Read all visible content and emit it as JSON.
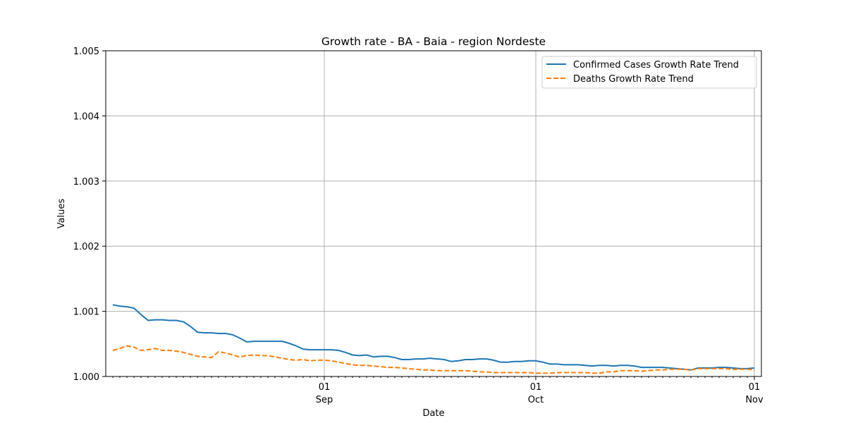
{
  "chart_data": {
    "type": "line",
    "title": "Growth rate - BA - Baia - region Nordeste",
    "xlabel": "Date",
    "ylabel": "Values",
    "ylim": [
      1.0,
      1.005
    ],
    "yticks": [
      "1.000",
      "1.001",
      "1.002",
      "1.003",
      "1.004",
      "1.005"
    ],
    "xlim": [
      "2020-08-02",
      "2020-11-01"
    ],
    "xticks": [
      {
        "date": "2020-09-01",
        "day": "01",
        "month": "Sep"
      },
      {
        "date": "2020-10-01",
        "day": "01",
        "month": "Oct"
      },
      {
        "date": "2020-11-01",
        "day": "01",
        "month": "Nov"
      }
    ],
    "grid": true,
    "legend_position": "top-right",
    "series": [
      {
        "name": "Confirmed Cases Growth Rate Trend",
        "color": "#1f77b4",
        "style": "solid",
        "x": [
          "2020-08-02",
          "2020-08-03",
          "2020-08-04",
          "2020-08-05",
          "2020-08-06",
          "2020-08-07",
          "2020-08-08",
          "2020-08-09",
          "2020-08-10",
          "2020-08-11",
          "2020-08-12",
          "2020-08-13",
          "2020-08-14",
          "2020-08-15",
          "2020-08-16",
          "2020-08-17",
          "2020-08-18",
          "2020-08-19",
          "2020-08-20",
          "2020-08-21",
          "2020-08-22",
          "2020-08-23",
          "2020-08-24",
          "2020-08-25",
          "2020-08-26",
          "2020-08-27",
          "2020-08-28",
          "2020-08-29",
          "2020-08-30",
          "2020-08-31",
          "2020-09-01",
          "2020-09-02",
          "2020-09-03",
          "2020-09-04",
          "2020-09-05",
          "2020-09-06",
          "2020-09-07",
          "2020-09-08",
          "2020-09-09",
          "2020-09-10",
          "2020-09-11",
          "2020-09-12",
          "2020-09-13",
          "2020-09-14",
          "2020-09-15",
          "2020-09-16",
          "2020-09-17",
          "2020-09-18",
          "2020-09-19",
          "2020-09-20",
          "2020-09-21",
          "2020-09-22",
          "2020-09-23",
          "2020-09-24",
          "2020-09-25",
          "2020-09-26",
          "2020-09-27",
          "2020-09-28",
          "2020-09-29",
          "2020-09-30",
          "2020-10-01",
          "2020-10-02",
          "2020-10-03",
          "2020-10-04",
          "2020-10-05",
          "2020-10-06",
          "2020-10-07",
          "2020-10-08",
          "2020-10-09",
          "2020-10-10",
          "2020-10-11",
          "2020-10-12",
          "2020-10-13",
          "2020-10-14",
          "2020-10-15",
          "2020-10-16",
          "2020-10-17",
          "2020-10-18",
          "2020-10-19",
          "2020-10-20",
          "2020-10-21",
          "2020-10-22",
          "2020-10-23",
          "2020-10-24",
          "2020-10-25",
          "2020-10-26",
          "2020-10-27",
          "2020-10-28",
          "2020-10-29",
          "2020-10-30",
          "2020-10-31",
          "2020-11-01"
        ],
        "values": [
          1.0011,
          1.00108,
          1.00107,
          1.00105,
          1.00095,
          1.00086,
          1.00087,
          1.00087,
          1.00086,
          1.00086,
          1.00084,
          1.00077,
          1.00068,
          1.00067,
          1.00067,
          1.00066,
          1.00066,
          1.00064,
          1.00059,
          1.00053,
          1.00054,
          1.00054,
          1.00054,
          1.00054,
          1.00054,
          1.00051,
          1.00047,
          1.00042,
          1.00041,
          1.00041,
          1.00041,
          1.00041,
          1.0004,
          1.00037,
          1.00033,
          1.00032,
          1.00033,
          1.0003,
          1.00031,
          1.00031,
          1.00029,
          1.00026,
          1.00026,
          1.00027,
          1.00027,
          1.00028,
          1.00027,
          1.00026,
          1.00023,
          1.00024,
          1.00026,
          1.00026,
          1.00027,
          1.00027,
          1.00025,
          1.00022,
          1.00022,
          1.00023,
          1.00023,
          1.00024,
          1.00024,
          1.00022,
          1.00019,
          1.00019,
          1.00018,
          1.00018,
          1.00018,
          1.00017,
          1.00016,
          1.00017,
          1.00017,
          1.00016,
          1.00017,
          1.00017,
          1.00016,
          1.00014,
          1.00014,
          1.00014,
          1.00014,
          1.00013,
          1.00012,
          1.00011,
          1.0001,
          1.00013,
          1.00013,
          1.00013,
          1.00014,
          1.00014,
          1.00013,
          1.00012,
          1.00012,
          1.00013
        ]
      },
      {
        "name": "Deaths Growth Rate Trend",
        "color": "#ff7f0e",
        "style": "dashed",
        "x": [
          "2020-08-02",
          "2020-08-03",
          "2020-08-04",
          "2020-08-05",
          "2020-08-06",
          "2020-08-07",
          "2020-08-08",
          "2020-08-09",
          "2020-08-10",
          "2020-08-11",
          "2020-08-12",
          "2020-08-13",
          "2020-08-14",
          "2020-08-15",
          "2020-08-16",
          "2020-08-17",
          "2020-08-18",
          "2020-08-19",
          "2020-08-20",
          "2020-08-21",
          "2020-08-22",
          "2020-08-23",
          "2020-08-24",
          "2020-08-25",
          "2020-08-26",
          "2020-08-27",
          "2020-08-28",
          "2020-08-29",
          "2020-08-30",
          "2020-08-31",
          "2020-09-01",
          "2020-09-02",
          "2020-09-03",
          "2020-09-04",
          "2020-09-05",
          "2020-09-06",
          "2020-09-07",
          "2020-09-08",
          "2020-09-09",
          "2020-09-10",
          "2020-09-11",
          "2020-09-12",
          "2020-09-13",
          "2020-09-14",
          "2020-09-15",
          "2020-09-16",
          "2020-09-17",
          "2020-09-18",
          "2020-09-19",
          "2020-09-20",
          "2020-09-21",
          "2020-09-22",
          "2020-09-23",
          "2020-09-24",
          "2020-09-25",
          "2020-09-26",
          "2020-09-27",
          "2020-09-28",
          "2020-09-29",
          "2020-09-30",
          "2020-10-01",
          "2020-10-02",
          "2020-10-03",
          "2020-10-04",
          "2020-10-05",
          "2020-10-06",
          "2020-10-07",
          "2020-10-08",
          "2020-10-09",
          "2020-10-10",
          "2020-10-11",
          "2020-10-12",
          "2020-10-13",
          "2020-10-14",
          "2020-10-15",
          "2020-10-16",
          "2020-10-17",
          "2020-10-18",
          "2020-10-19",
          "2020-10-20",
          "2020-10-21",
          "2020-10-22",
          "2020-10-23",
          "2020-10-24",
          "2020-10-25",
          "2020-10-26",
          "2020-10-27",
          "2020-10-28",
          "2020-10-29",
          "2020-10-30",
          "2020-10-31",
          "2020-11-01"
        ],
        "values": [
          1.0004,
          1.00043,
          1.00047,
          1.00045,
          1.0004,
          1.00041,
          1.00043,
          1.0004,
          1.0004,
          1.00039,
          1.00037,
          1.00034,
          1.00031,
          1.0003,
          1.00029,
          1.00038,
          1.00036,
          1.00033,
          1.0003,
          1.00032,
          1.00033,
          1.00032,
          1.00032,
          1.0003,
          1.00028,
          1.00026,
          1.00025,
          1.00026,
          1.00024,
          1.00025,
          1.00025,
          1.00024,
          1.00022,
          1.0002,
          1.00018,
          1.00017,
          1.00017,
          1.00016,
          1.00015,
          1.00014,
          1.00014,
          1.00013,
          1.00012,
          1.00011,
          1.0001,
          1.0001,
          1.00009,
          1.00009,
          1.00009,
          1.00009,
          1.00009,
          1.00008,
          1.00007,
          1.00007,
          1.00006,
          1.00006,
          1.00006,
          1.00006,
          1.00006,
          1.00006,
          1.00005,
          1.00005,
          1.00005,
          1.00006,
          1.00006,
          1.00006,
          1.00006,
          1.00006,
          1.00005,
          1.00005,
          1.00007,
          1.00007,
          1.00009,
          1.00009,
          1.00009,
          1.00008,
          1.00009,
          1.0001,
          1.0001,
          1.00011,
          1.00011,
          1.00011,
          1.0001,
          1.00012,
          1.00012,
          1.00012,
          1.00012,
          1.00012,
          1.00011,
          1.00011,
          1.00011,
          1.0001
        ]
      }
    ]
  }
}
